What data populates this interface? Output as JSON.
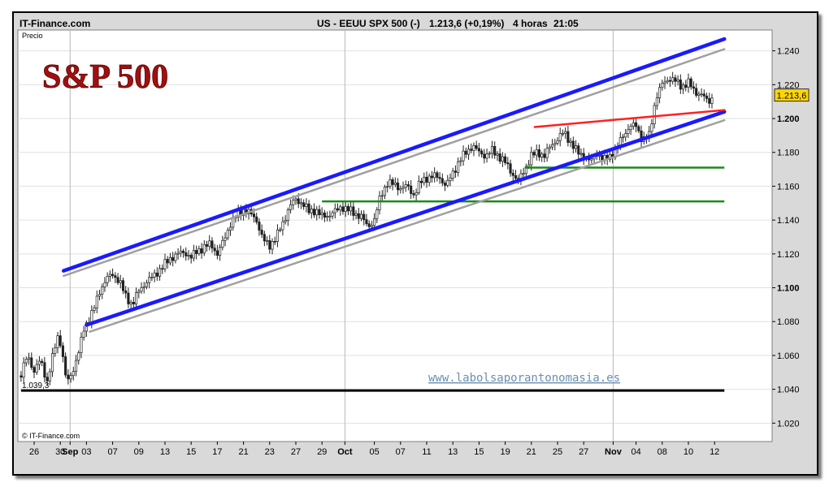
{
  "header": {
    "source": "IT-Finance.com",
    "instrument": "US - EEUU SPX 500 (-)",
    "quote": "1.213,6 (+0,19%)",
    "interval": "4 horas",
    "time": "21:05"
  },
  "colors": {
    "channel": "#1a1aff",
    "channel_shadow": "#a0a0a0",
    "resistance": "#ff2020",
    "support_green": "#1a8a1a",
    "support_black": "#000000",
    "candles": "#202020",
    "watermark": "#6a8fb0",
    "title": "#a01010"
  },
  "chart_data": {
    "type": "candlestick",
    "title": "S&P 500",
    "ylabel": "Precio",
    "watermark": "www.labolsaporantonomasia.es",
    "copyright": "© IT-Finance.com",
    "ylim": [
      1012,
      1252
    ],
    "yticks": [
      {
        "value": 1240,
        "label": "1.240"
      },
      {
        "value": 1220,
        "label": "1.220"
      },
      {
        "value": 1200,
        "label": "1.200"
      },
      {
        "value": 1180,
        "label": "1.180"
      },
      {
        "value": 1160,
        "label": "1.160"
      },
      {
        "value": 1140,
        "label": "1.140"
      },
      {
        "value": 1120,
        "label": "1.120"
      },
      {
        "value": 1100,
        "label": "1.100"
      },
      {
        "value": 1080,
        "label": "1.080"
      },
      {
        "value": 1060,
        "label": "1.060"
      },
      {
        "value": 1040,
        "label": "1.040"
      },
      {
        "value": 1020,
        "label": "1.020"
      }
    ],
    "xticks": [
      {
        "day": 0,
        "label": "26"
      },
      {
        "day": 4,
        "label": "30"
      },
      {
        "day": 5.5,
        "label": "Sep",
        "month": true
      },
      {
        "day": 8,
        "label": "03"
      },
      {
        "day": 12,
        "label": "07"
      },
      {
        "day": 16,
        "label": "09"
      },
      {
        "day": 20,
        "label": "13"
      },
      {
        "day": 24,
        "label": "15"
      },
      {
        "day": 28,
        "label": "17"
      },
      {
        "day": 32,
        "label": "21"
      },
      {
        "day": 36,
        "label": "23"
      },
      {
        "day": 40,
        "label": "27"
      },
      {
        "day": 44,
        "label": "29"
      },
      {
        "day": 47.5,
        "label": "Oct",
        "month": true
      },
      {
        "day": 52,
        "label": "05"
      },
      {
        "day": 56,
        "label": "07"
      },
      {
        "day": 60,
        "label": "11"
      },
      {
        "day": 64,
        "label": "13"
      },
      {
        "day": 68,
        "label": "15"
      },
      {
        "day": 72,
        "label": "19"
      },
      {
        "day": 76,
        "label": "21"
      },
      {
        "day": 80,
        "label": "25"
      },
      {
        "day": 84,
        "label": "27"
      },
      {
        "day": 88.5,
        "label": "Nov",
        "month": true
      },
      {
        "day": 92,
        "label": "04"
      },
      {
        "day": 96,
        "label": "08"
      },
      {
        "day": 100,
        "label": "10"
      },
      {
        "day": 104,
        "label": "12"
      }
    ],
    "xlim": [
      -2,
      105.5
    ],
    "last_price": {
      "value": 1213.6,
      "label": "1.213,6"
    },
    "support_label": {
      "value": 1039.3,
      "label": "1.039,3"
    },
    "trend_lines": [
      {
        "name": "channel-top",
        "kind": "channel",
        "x": [
          4.5,
          105.5
        ],
        "y": [
          1110,
          1247
        ]
      },
      {
        "name": "channel-top-shadow",
        "kind": "shadow",
        "x": [
          4.5,
          105.5
        ],
        "y": [
          1107,
          1241
        ]
      },
      {
        "name": "channel-bottom",
        "kind": "channel",
        "x": [
          8,
          105.5
        ],
        "y": [
          1078,
          1204
        ]
      },
      {
        "name": "channel-bottom-shadow",
        "kind": "shadow",
        "x": [
          8.5,
          105.5
        ],
        "y": [
          1074,
          1199
        ]
      },
      {
        "name": "resistance-red",
        "kind": "resistance",
        "x": [
          76.5,
          105.5
        ],
        "y": [
          1195,
          1205
        ]
      }
    ],
    "horizontal_lines": [
      {
        "name": "support-1151",
        "kind": "green",
        "y": 1151,
        "x": [
          44,
          105.5
        ]
      },
      {
        "name": "support-1171",
        "kind": "green",
        "y": 1171,
        "x": [
          75,
          105.5
        ]
      },
      {
        "name": "support-1039",
        "kind": "black",
        "y": 1039.3,
        "x": [
          -2,
          105.5
        ]
      }
    ],
    "close_path": [
      [
        -2,
        1048
      ],
      [
        -1,
        1061
      ],
      [
        0,
        1050
      ],
      [
        1,
        1058
      ],
      [
        2,
        1044
      ],
      [
        3,
        1062
      ],
      [
        3.5,
        1072
      ],
      [
        4,
        1068
      ],
      [
        5,
        1043
      ],
      [
        5.5,
        1048
      ],
      [
        6,
        1052
      ],
      [
        7,
        1064
      ],
      [
        7.5,
        1075
      ],
      [
        8,
        1079
      ],
      [
        9,
        1086
      ],
      [
        10,
        1098
      ],
      [
        11,
        1105
      ],
      [
        12,
        1108
      ],
      [
        13,
        1104
      ],
      [
        14,
        1095
      ],
      [
        15,
        1090
      ],
      [
        16,
        1098
      ],
      [
        17,
        1103
      ],
      [
        18,
        1106
      ],
      [
        19,
        1110
      ],
      [
        20,
        1114
      ],
      [
        21,
        1118
      ],
      [
        22,
        1120
      ],
      [
        23,
        1121
      ],
      [
        24,
        1118
      ],
      [
        25,
        1122
      ],
      [
        26,
        1124
      ],
      [
        27,
        1126
      ],
      [
        28,
        1120
      ],
      [
        29,
        1128
      ],
      [
        30,
        1138
      ],
      [
        31,
        1143
      ],
      [
        32,
        1146
      ],
      [
        33,
        1144
      ],
      [
        34,
        1140
      ],
      [
        35,
        1128
      ],
      [
        36,
        1125
      ],
      [
        37,
        1130
      ],
      [
        38,
        1138
      ],
      [
        39,
        1148
      ],
      [
        40,
        1152
      ],
      [
        41,
        1150
      ],
      [
        42,
        1145
      ],
      [
        43,
        1146
      ],
      [
        44,
        1142
      ],
      [
        45,
        1143
      ],
      [
        46,
        1145
      ],
      [
        47,
        1148
      ],
      [
        48,
        1146
      ],
      [
        49,
        1144
      ],
      [
        50,
        1142
      ],
      [
        51,
        1136
      ],
      [
        52,
        1140
      ],
      [
        53,
        1155
      ],
      [
        54,
        1162
      ],
      [
        55,
        1161
      ],
      [
        56,
        1159
      ],
      [
        57,
        1160
      ],
      [
        58,
        1155
      ],
      [
        59,
        1162
      ],
      [
        60,
        1165
      ],
      [
        61,
        1166
      ],
      [
        62,
        1165
      ],
      [
        63,
        1160
      ],
      [
        64,
        1168
      ],
      [
        65,
        1175
      ],
      [
        66,
        1180
      ],
      [
        67,
        1184
      ],
      [
        68,
        1180
      ],
      [
        69,
        1178
      ],
      [
        70,
        1181
      ],
      [
        71,
        1178
      ],
      [
        72,
        1174
      ],
      [
        73,
        1168
      ],
      [
        74,
        1163
      ],
      [
        75,
        1170
      ],
      [
        76,
        1178
      ],
      [
        77,
        1180
      ],
      [
        78,
        1178
      ],
      [
        79,
        1184
      ],
      [
        80,
        1188
      ],
      [
        81,
        1192
      ],
      [
        82,
        1186
      ],
      [
        83,
        1180
      ],
      [
        84,
        1178
      ],
      [
        85,
        1174
      ],
      [
        86,
        1180
      ],
      [
        87,
        1175
      ],
      [
        88,
        1178
      ],
      [
        89,
        1182
      ],
      [
        90,
        1190
      ],
      [
        91,
        1195
      ],
      [
        92,
        1196
      ],
      [
        93,
        1187
      ],
      [
        94,
        1190
      ],
      [
        95,
        1212
      ],
      [
        96,
        1220
      ],
      [
        97,
        1224
      ],
      [
        98,
        1222
      ],
      [
        99,
        1219
      ],
      [
        100,
        1221
      ],
      [
        101,
        1216
      ],
      [
        102,
        1214
      ],
      [
        103,
        1210
      ],
      [
        104,
        1213.6
      ]
    ]
  }
}
